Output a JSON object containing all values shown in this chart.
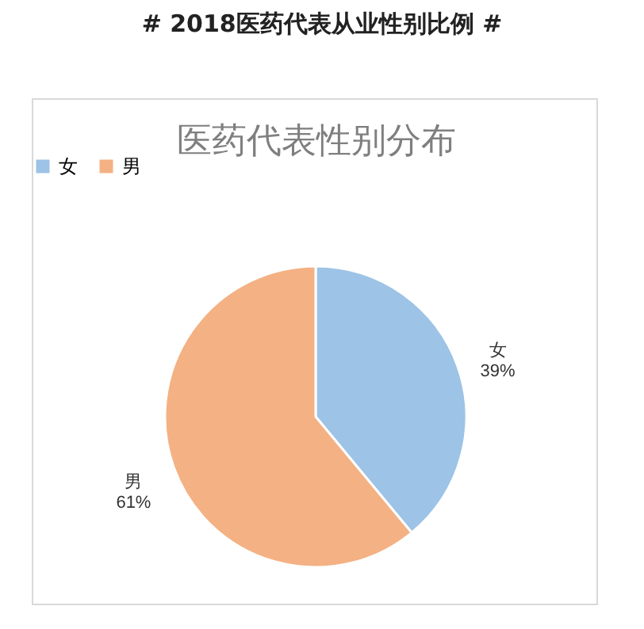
{
  "chart_data": {
    "type": "pie",
    "title": "# 2018医药代表从业性别比例 #",
    "subtitle": "医药代表性别分布",
    "categories": [
      "女",
      "男"
    ],
    "values": [
      39,
      61
    ],
    "colors": [
      "#9dc3e6",
      "#f4b183"
    ],
    "value_labels": [
      "39%",
      "61%"
    ],
    "legend": "top"
  }
}
